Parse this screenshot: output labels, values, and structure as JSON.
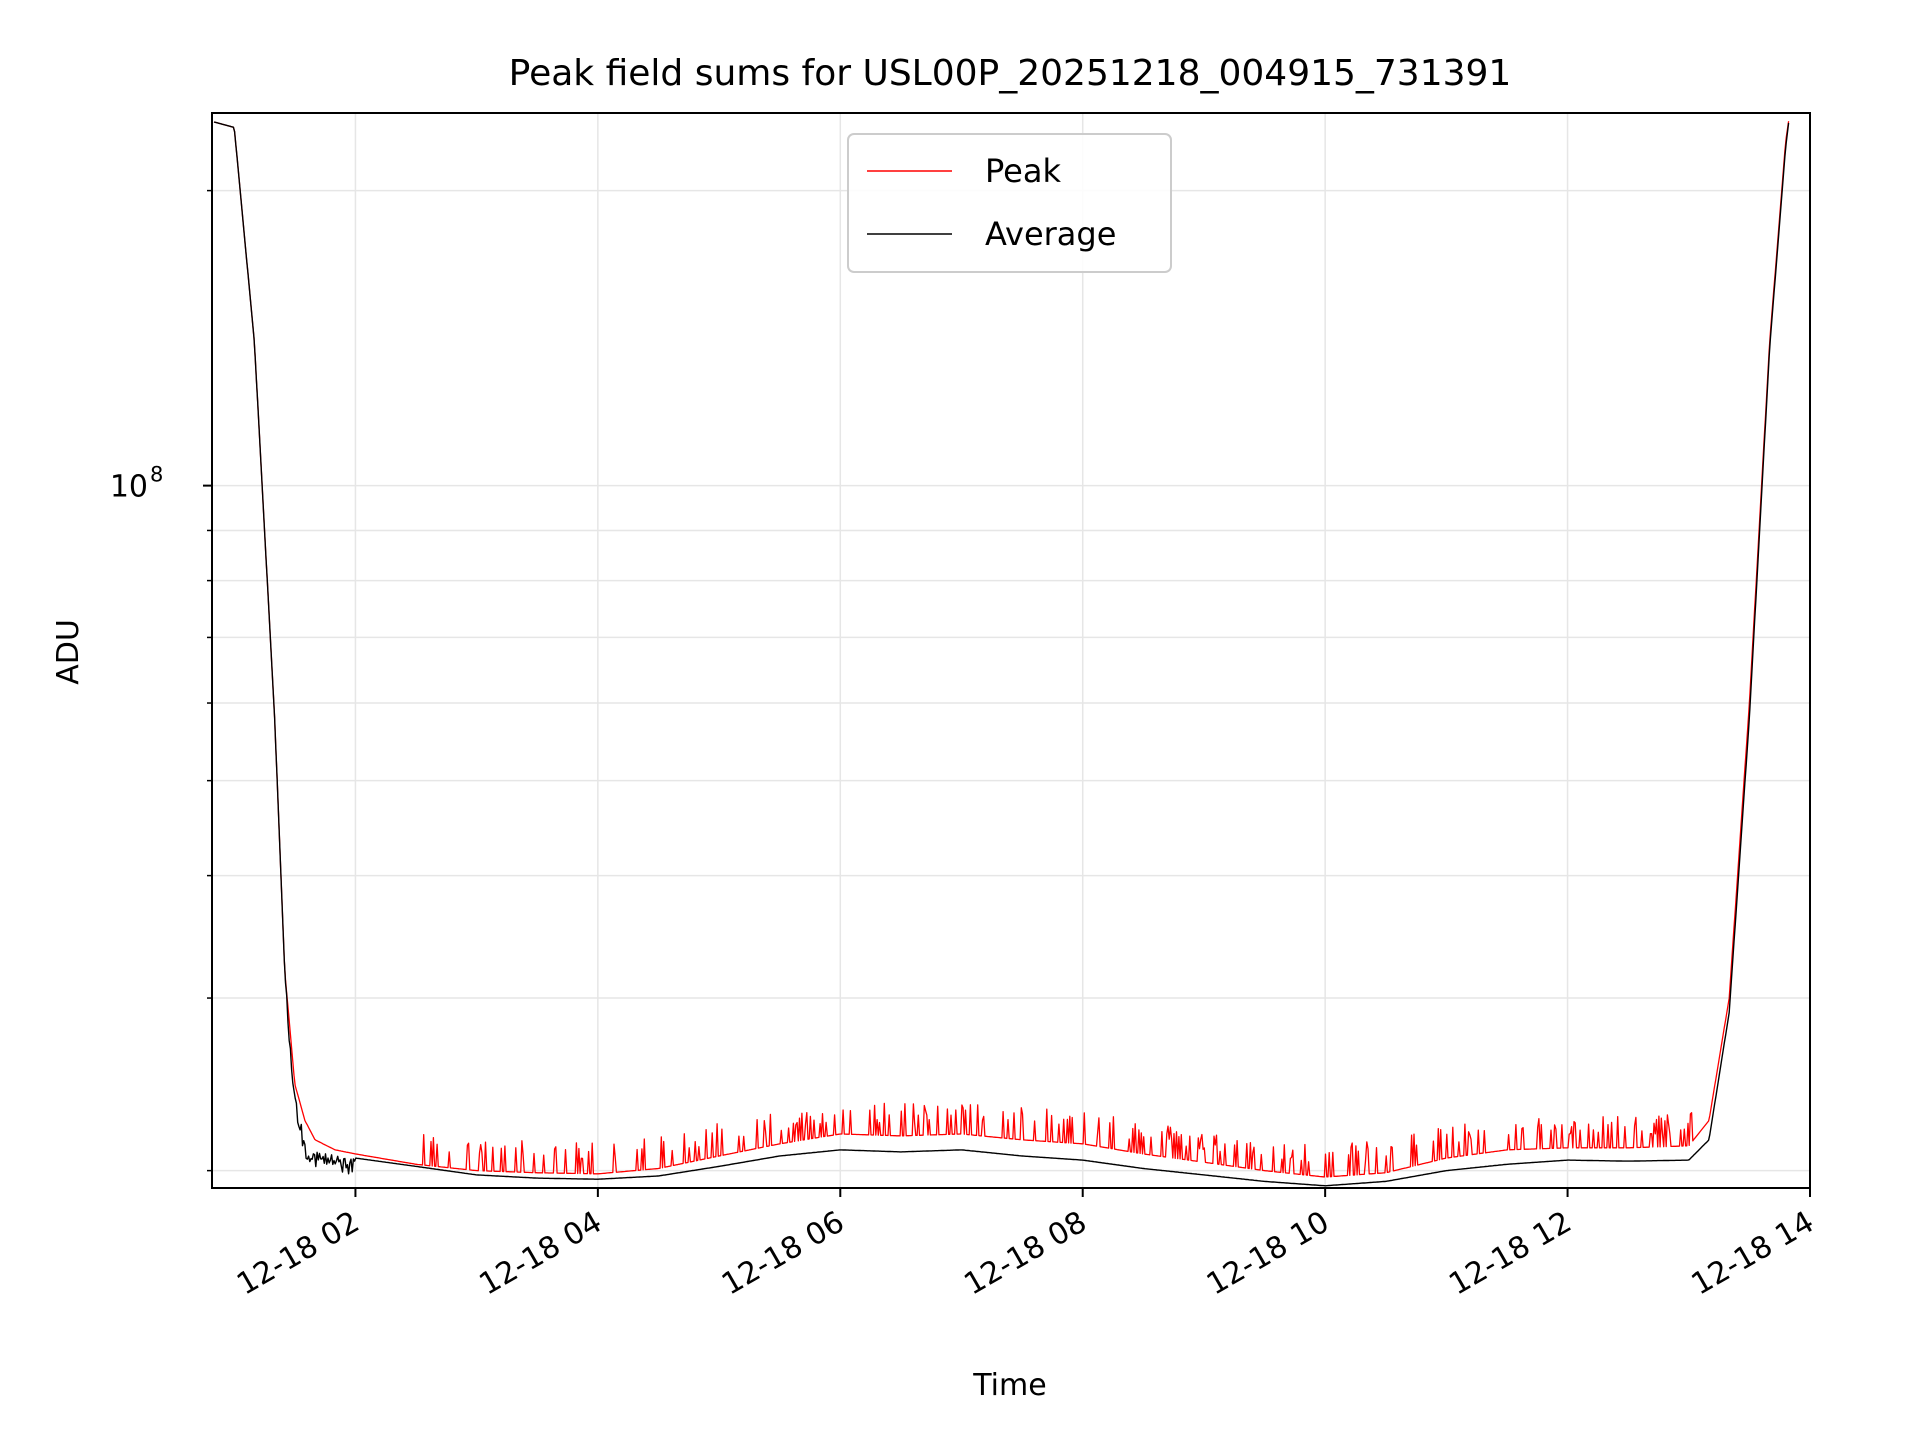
{
  "chart_data": {
    "type": "line",
    "title": "Peak field sums for USL00P_20251218_004915_731391",
    "xlabel": "Time",
    "ylabel": "ADU",
    "y_scale": "log",
    "ylim": [
      19200000,
      240000000
    ],
    "xlim": [
      "2025-12-18 00:49",
      "2025-12-18 14:00"
    ],
    "x_ticks": [
      "12-18 02",
      "12-18 04",
      "12-18 06",
      "12-18 08",
      "12-18 10",
      "12-18 12",
      "12-18 14"
    ],
    "y_ticks": [
      {
        "base": "10",
        "exp": "8",
        "value": 100000000
      }
    ],
    "grid": true,
    "legend_position": "upper center",
    "series": [
      {
        "name": "Peak",
        "color": "#ff0000",
        "style": "spiky",
        "x": [
          "2025-12-18 00:50",
          "2025-12-18 01:00",
          "2025-12-18 01:10",
          "2025-12-18 01:20",
          "2025-12-18 01:25",
          "2025-12-18 01:30",
          "2025-12-18 01:35",
          "2025-12-18 01:40",
          "2025-12-18 01:50",
          "2025-12-18 02:00",
          "2025-12-18 02:30",
          "2025-12-18 03:00",
          "2025-12-18 03:30",
          "2025-12-18 04:00",
          "2025-12-18 04:30",
          "2025-12-18 05:00",
          "2025-12-18 05:30",
          "2025-12-18 06:00",
          "2025-12-18 06:30",
          "2025-12-18 07:00",
          "2025-12-18 07:30",
          "2025-12-18 08:00",
          "2025-12-18 08:30",
          "2025-12-18 09:00",
          "2025-12-18 09:30",
          "2025-12-18 10:00",
          "2025-12-18 10:30",
          "2025-12-18 11:00",
          "2025-12-18 11:30",
          "2025-12-18 12:00",
          "2025-12-18 12:30",
          "2025-12-18 13:00",
          "2025-12-18 13:10",
          "2025-12-18 13:20",
          "2025-12-18 13:30",
          "2025-12-18 13:40",
          "2025-12-18 13:48",
          "2025-12-18 13:50"
        ],
        "values": [
          235000000,
          232000000,
          140000000,
          58000000,
          32000000,
          24500000,
          22500000,
          21500000,
          21000000,
          20800000,
          20300000,
          20000000,
          19900000,
          19850000,
          20100000,
          20700000,
          21300000,
          21800000,
          21700000,
          21800000,
          21500000,
          21300000,
          20800000,
          20400000,
          20000000,
          19700000,
          19900000,
          20600000,
          21000000,
          21100000,
          21100000,
          21200000,
          22500000,
          30000000,
          60000000,
          140000000,
          225000000,
          240000000
        ]
      },
      {
        "name": "Average",
        "color": "#000000",
        "style": "solid",
        "x": [
          "2025-12-18 00:50",
          "2025-12-18 01:00",
          "2025-12-18 01:10",
          "2025-12-18 01:20",
          "2025-12-18 01:25",
          "2025-12-18 01:30",
          "2025-12-18 01:35",
          "2025-12-18 01:40",
          "2025-12-18 01:50",
          "2025-12-18 02:00",
          "2025-12-18 02:30",
          "2025-12-18 03:00",
          "2025-12-18 03:30",
          "2025-12-18 04:00",
          "2025-12-18 04:30",
          "2025-12-18 05:00",
          "2025-12-18 05:30",
          "2025-12-18 06:00",
          "2025-12-18 06:30",
          "2025-12-18 07:00",
          "2025-12-18 07:30",
          "2025-12-18 08:00",
          "2025-12-18 08:30",
          "2025-12-18 09:00",
          "2025-12-18 09:30",
          "2025-12-18 10:00",
          "2025-12-18 10:30",
          "2025-12-18 11:00",
          "2025-12-18 11:30",
          "2025-12-18 12:00",
          "2025-12-18 12:30",
          "2025-12-18 13:00",
          "2025-12-18 13:10",
          "2025-12-18 13:20",
          "2025-12-18 13:30",
          "2025-12-18 13:40",
          "2025-12-18 13:48",
          "2025-12-18 13:50"
        ],
        "values": [
          235000000,
          232000000,
          140000000,
          58000000,
          32000000,
          24000000,
          21500000,
          21000000,
          20800000,
          20600000,
          20200000,
          19800000,
          19650000,
          19600000,
          19750000,
          20200000,
          20700000,
          21000000,
          20900000,
          21000000,
          20700000,
          20500000,
          20100000,
          19800000,
          19500000,
          19300000,
          19500000,
          20000000,
          20300000,
          20500000,
          20450000,
          20500000,
          21500000,
          29000000,
          58000000,
          138000000,
          222000000,
          240000000
        ]
      }
    ]
  }
}
